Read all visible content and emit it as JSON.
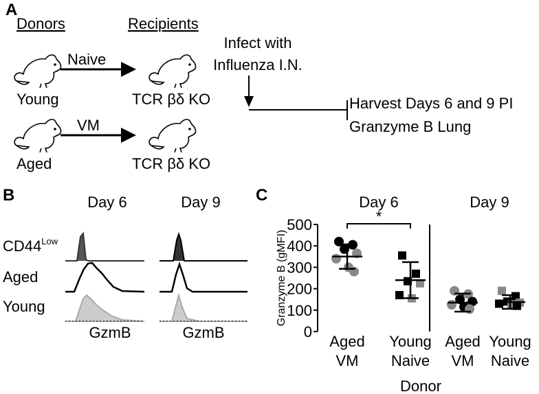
{
  "panel_a": {
    "label": "A",
    "donors": "Donors",
    "recipients": "Recipients",
    "rows": [
      {
        "donor": "Young",
        "transfer": "Naive",
        "recipient": "TCR βδ KO"
      },
      {
        "donor": "Aged",
        "transfer": "VM",
        "recipient": "TCR βδ KO"
      }
    ],
    "infect": [
      "Infect with",
      "Influenza I.N."
    ],
    "harvest": [
      "Harvest Days 6 and 9 PI",
      "Granzyme B Lung"
    ]
  },
  "panel_b": {
    "label": "B",
    "columns": [
      "Day 6",
      "Day 9"
    ],
    "rows": [
      {
        "name": "CD44",
        "superscript": "Low"
      },
      {
        "name": "Aged"
      },
      {
        "name": "Young"
      }
    ],
    "xlabel": "GzmB"
  },
  "panel_c_label": "C",
  "chart_data": {
    "type": "dot",
    "ylabel": "Granzyme B (gMFI)",
    "xlabel": "Donor",
    "ylim": [
      0,
      500
    ],
    "yticks": [
      0,
      100,
      200,
      300,
      400,
      500
    ],
    "significance": "*",
    "panels": [
      {
        "title": "Day 6",
        "groups": [
          {
            "name": [
              "Aged",
              "VM"
            ],
            "marker": "circle",
            "mean": 350,
            "sd": 57,
            "values": [
              420,
              405,
              385,
              365,
              340,
              300,
              280
            ],
            "colors": [
              "#000",
              "#000",
              "#000",
              "#888",
              "#888",
              "#888",
              "#888"
            ]
          },
          {
            "name": [
              "Young",
              "Naive"
            ],
            "marker": "square",
            "mean": 240,
            "sd": 84,
            "values": [
              355,
              270,
              235,
              225,
              170,
              155
            ],
            "colors": [
              "#000",
              "#000",
              "#000",
              "#888",
              "#000",
              "#888"
            ]
          }
        ]
      },
      {
        "title": "Day 9",
        "groups": [
          {
            "name": [
              "Aged",
              "VM"
            ],
            "marker": "circle",
            "mean": 135,
            "sd": 42,
            "values": [
              190,
              175,
              150,
              140,
              125,
              115,
              105
            ],
            "colors": [
              "#888",
              "#888",
              "#000",
              "#000",
              "#888",
              "#000",
              "#888"
            ]
          },
          {
            "name": [
              "Young",
              "Naive"
            ],
            "marker": "square",
            "mean": 138,
            "sd": 32,
            "values": [
              190,
              165,
              140,
              135,
              130,
              125,
              120
            ],
            "colors": [
              "#888",
              "#000",
              "#000",
              "#888",
              "#000",
              "#888",
              "#000"
            ]
          }
        ]
      }
    ]
  }
}
